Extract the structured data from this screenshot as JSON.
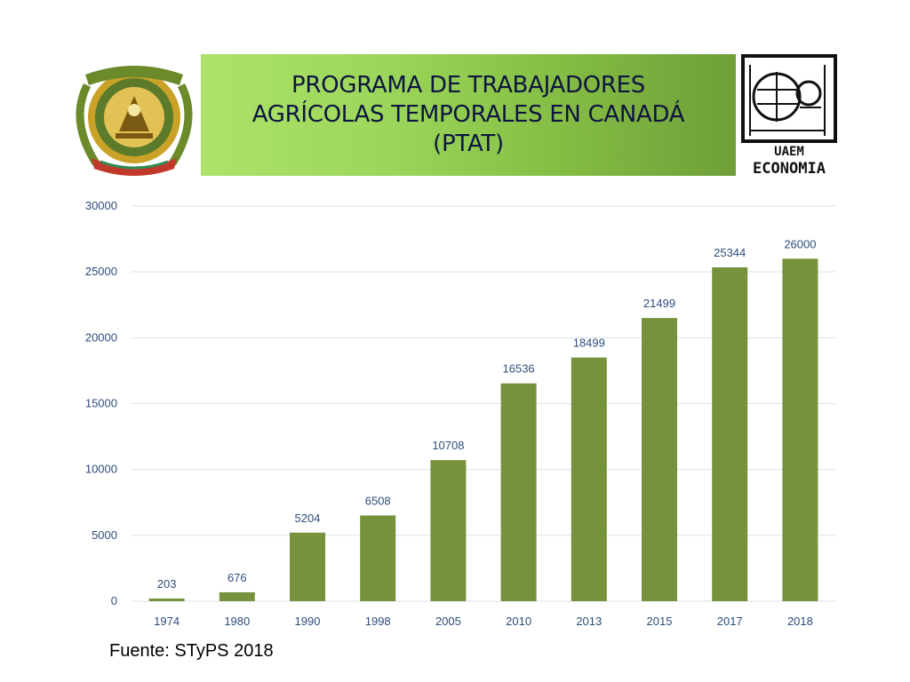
{
  "title": "PROGRAMA DE TRABAJADORES\nAGRÍCOLAS TEMPORALES EN CANADÁ\n(PTAT)",
  "left_logo": {
    "icon": "university-seal-icon"
  },
  "right_logo": {
    "icon": "uaem-economia-logo-icon",
    "text_top": "UAEM",
    "text_bottom": "ECONOMIA"
  },
  "colors": {
    "bar": "#76923c",
    "grid": "#d9e2ec",
    "label": "#2e4d7a",
    "title": "#0d1540"
  },
  "chart_data": {
    "type": "bar",
    "categories": [
      "1974",
      "1980",
      "1990",
      "1998",
      "2005",
      "2010",
      "2013",
      "2015",
      "2017",
      "2018"
    ],
    "values": [
      203,
      676,
      5204,
      6508,
      10708,
      16536,
      18499,
      21499,
      25344,
      26000
    ],
    "yticks": [
      0,
      5000,
      10000,
      15000,
      20000,
      25000,
      30000
    ],
    "ylim": [
      0,
      30000
    ],
    "grid": true,
    "legend": "none",
    "data_labels": true
  },
  "footer": {
    "source": "Fuente: STyPS 2018"
  }
}
